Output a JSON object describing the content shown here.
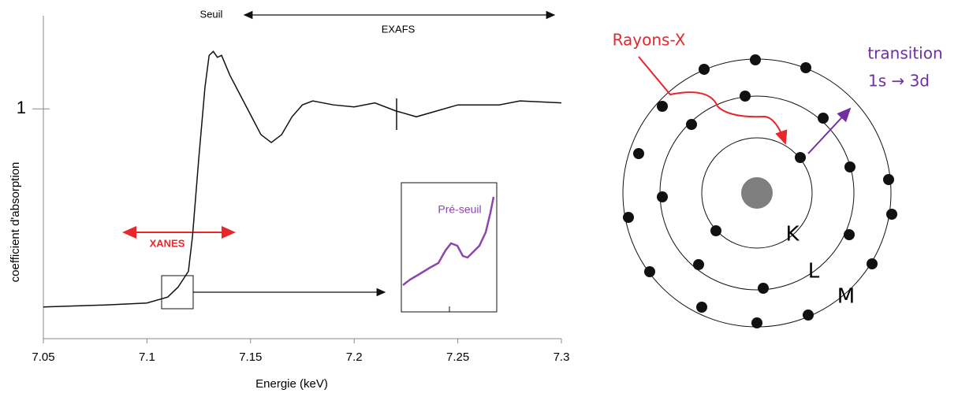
{
  "chart_data": {
    "type": "line",
    "x_label": "Energie (keV)",
    "y_label": "coefficient d'absorption",
    "annotations": {
      "edge": "Seuil",
      "exafs": "EXAFS",
      "xanes": "XANES",
      "pre_edge": "Pré-seuil"
    },
    "x": [
      7.05,
      7.08,
      7.1,
      7.11,
      7.115,
      7.12,
      7.122,
      7.125,
      7.128,
      7.13,
      7.132,
      7.134,
      7.136,
      7.14,
      7.145,
      7.15,
      7.155,
      7.16,
      7.165,
      7.17,
      7.175,
      7.18,
      7.19,
      7.2,
      7.21,
      7.22,
      7.23,
      7.24,
      7.25,
      7.27,
      7.28,
      7.3
    ],
    "series": [
      {
        "color": "#111111",
        "values": [
          0.0,
          0.01,
          0.02,
          0.05,
          0.1,
          0.18,
          0.36,
          0.75,
          1.11,
          1.27,
          1.29,
          1.26,
          1.27,
          1.17,
          1.07,
          0.97,
          0.87,
          0.83,
          0.87,
          0.96,
          1.02,
          1.04,
          1.02,
          1.01,
          1.03,
          0.99,
          0.96,
          0.99,
          1.02,
          1.02,
          1.04,
          1.03
        ]
      }
    ],
    "xlim": [
      7.05,
      7.3
    ],
    "xticks": [
      7.05,
      7.1,
      7.15,
      7.2,
      7.25,
      7.3
    ],
    "ylim": [
      -0.16,
      1.47
    ],
    "yticks": [
      1
    ]
  },
  "diagram": {
    "ray_label": "Rayons-X",
    "transition_label": "transition",
    "transition_detail": "1s → 3d",
    "shells": [
      "K",
      "L",
      "M"
    ]
  }
}
